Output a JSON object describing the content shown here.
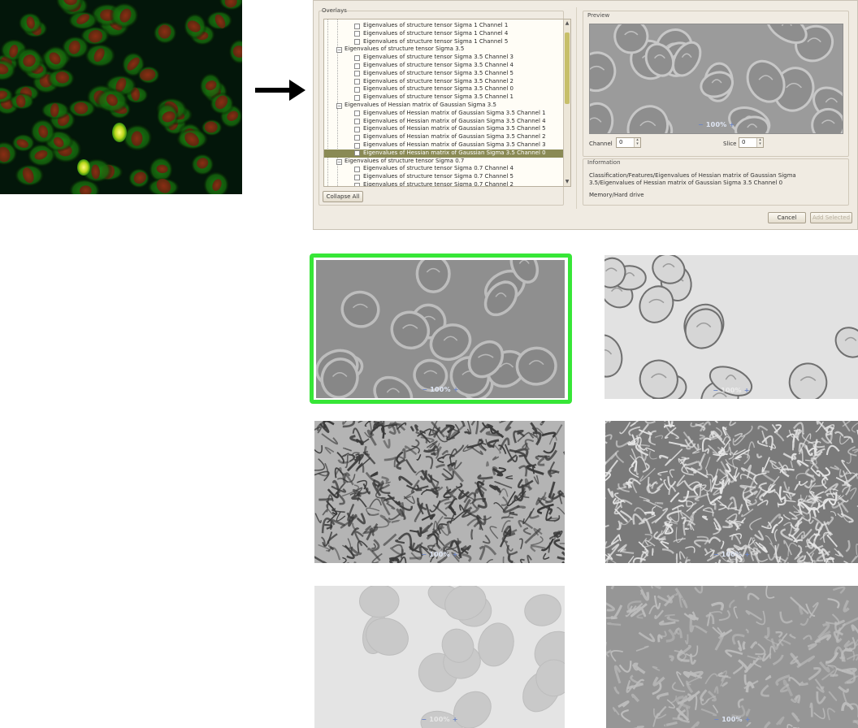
{
  "colors": {
    "highlight": "#37e637",
    "selection": "#8a8a55",
    "zoom_button": "#6d86c6"
  },
  "dialog": {
    "overlays_title": "Overlays",
    "preview_title": "Preview",
    "information_title": "Information",
    "tree_rows": [
      {
        "label": "Eigenvalues of structure tensor Sigma 1 Channel 1",
        "level": 2,
        "checked": false,
        "selected": false
      },
      {
        "label": "Eigenvalues of structure tensor Sigma 1 Channel 4",
        "level": 2,
        "checked": false,
        "selected": false
      },
      {
        "label": "Eigenvalues of structure tensor Sigma 1 Channel 5",
        "level": 2,
        "checked": false,
        "selected": false
      },
      {
        "label": "Eigenvalues of structure tensor Sigma 3.5",
        "level": 1,
        "expander": "⊟",
        "selected": false
      },
      {
        "label": "Eigenvalues of structure tensor Sigma 3.5 Channel 3",
        "level": 2,
        "checked": false,
        "selected": false
      },
      {
        "label": "Eigenvalues of structure tensor Sigma 3.5 Channel 4",
        "level": 2,
        "checked": false,
        "selected": false
      },
      {
        "label": "Eigenvalues of structure tensor Sigma 3.5 Channel 5",
        "level": 2,
        "checked": false,
        "selected": false
      },
      {
        "label": "Eigenvalues of structure tensor Sigma 3.5 Channel 2",
        "level": 2,
        "checked": false,
        "selected": false
      },
      {
        "label": "Eigenvalues of structure tensor Sigma 3.5 Channel 0",
        "level": 2,
        "checked": false,
        "selected": false
      },
      {
        "label": "Eigenvalues of structure tensor Sigma 3.5 Channel 1",
        "level": 2,
        "checked": false,
        "selected": false
      },
      {
        "label": "Eigenvalues of Hessian matrix of Gaussian Sigma 3.5",
        "level": 1,
        "expander": "⊟",
        "selected": false
      },
      {
        "label": "Eigenvalues of Hessian matrix of Gaussian Sigma 3.5 Channel 1",
        "level": 2,
        "checked": false,
        "selected": false
      },
      {
        "label": "Eigenvalues of Hessian matrix of Gaussian Sigma 3.5 Channel 4",
        "level": 2,
        "checked": false,
        "selected": false
      },
      {
        "label": "Eigenvalues of Hessian matrix of Gaussian Sigma 3.5 Channel 5",
        "level": 2,
        "checked": false,
        "selected": false
      },
      {
        "label": "Eigenvalues of Hessian matrix of Gaussian Sigma 3.5 Channel 2",
        "level": 2,
        "checked": false,
        "selected": false
      },
      {
        "label": "Eigenvalues of Hessian matrix of Gaussian Sigma 3.5 Channel 3",
        "level": 2,
        "checked": false,
        "selected": false
      },
      {
        "label": "Eigenvalues of Hessian matrix of Gaussian Sigma 3.5 Channel 0",
        "level": 2,
        "checked": false,
        "selected": true
      },
      {
        "label": "Eigenvalues of structure tensor Sigma 0.7",
        "level": 1,
        "expander": "⊟",
        "selected": false
      },
      {
        "label": "Eigenvalues of structure tensor Sigma 0.7 Channel 4",
        "level": 2,
        "checked": false,
        "selected": false
      },
      {
        "label": "Eigenvalues of structure tensor Sigma 0.7 Channel 5",
        "level": 2,
        "checked": false,
        "selected": false
      },
      {
        "label": "Eigenvalues of structure tensor Sigma 0.7 Channel 2",
        "level": 2,
        "checked": false,
        "selected": false
      }
    ],
    "collapse_all_label": "Collapse All",
    "channel_label": "Channel",
    "channel_value": "0",
    "slice_label": "Slice",
    "slice_value": "0",
    "preview_zoom": "100%",
    "info_text": "Classification/Features/Eigenvalues of Hessian matrix of Gaussian Sigma 3.5/Eigenvalues of Hessian matrix of Gaussian Sigma 3.5 Channel 0",
    "memory_text": "Memory/Hard drive",
    "cancel_label": "Cancel",
    "add_selected_label": "Add Selected"
  },
  "panels": [
    {
      "zoom": "100%",
      "selected": true
    },
    {
      "zoom": "100%",
      "selected": false
    },
    {
      "zoom": "100%",
      "selected": false
    },
    {
      "zoom": "100%",
      "selected": false
    },
    {
      "zoom": "100%",
      "selected": false
    },
    {
      "zoom": "100%",
      "selected": false
    }
  ]
}
